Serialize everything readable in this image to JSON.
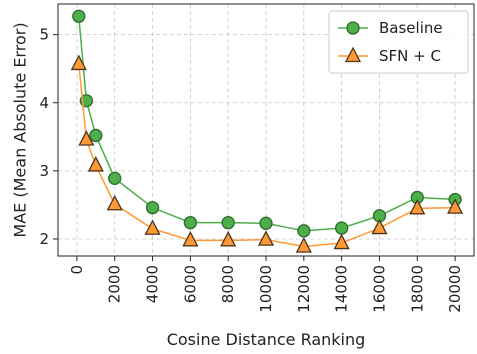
{
  "chart_data": {
    "type": "line",
    "xlabel": "Cosine Distance Ranking",
    "ylabel": "MAE (Mean Absolute Error)",
    "xlim": [
      -1000,
      21000
    ],
    "ylim": [
      1.75,
      5.45
    ],
    "xticks": [
      0,
      2000,
      4000,
      6000,
      8000,
      10000,
      12000,
      14000,
      16000,
      18000,
      20000
    ],
    "yticks": [
      2,
      3,
      4,
      5
    ],
    "grid": true,
    "legend_position": "top-right",
    "x": [
      100,
      500,
      1000,
      2000,
      4000,
      6000,
      8000,
      10000,
      12000,
      14000,
      16000,
      18000,
      20000
    ],
    "series": [
      {
        "name": "Baseline",
        "values": [
          5.27,
          4.03,
          3.52,
          2.89,
          2.46,
          2.24,
          2.24,
          2.23,
          2.12,
          2.16,
          2.34,
          2.61,
          2.58
        ],
        "color": "#4daf4a",
        "edge_color": "#2d6a2d",
        "marker": "circle"
      },
      {
        "name": "SFN + C",
        "values": [
          4.57,
          3.46,
          3.08,
          2.51,
          2.15,
          1.98,
          1.98,
          1.99,
          1.89,
          1.94,
          2.16,
          2.45,
          2.46
        ],
        "color": "#ff9933",
        "edge_color": "#4a3520",
        "marker": "triangle"
      }
    ]
  }
}
